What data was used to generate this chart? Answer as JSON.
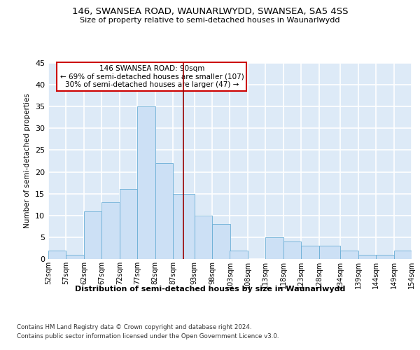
{
  "title1": "146, SWANSEA ROAD, WAUNARLWYDD, SWANSEA, SA5 4SS",
  "title2": "Size of property relative to semi-detached houses in Waunarlwydd",
  "xlabel": "Distribution of semi-detached houses by size in Waunarlwydd",
  "ylabel": "Number of semi-detached properties",
  "bin_labels": [
    "52sqm",
    "57sqm",
    "62sqm",
    "67sqm",
    "72sqm",
    "77sqm",
    "82sqm",
    "87sqm",
    "93sqm",
    "98sqm",
    "103sqm",
    "108sqm",
    "113sqm",
    "118sqm",
    "123sqm",
    "128sqm",
    "134sqm",
    "139sqm",
    "144sqm",
    "149sqm",
    "154sqm"
  ],
  "bar_heights": [
    2,
    1,
    11,
    13,
    16,
    35,
    22,
    15,
    10,
    8,
    2,
    0,
    5,
    4,
    3,
    3,
    2,
    1,
    1,
    2
  ],
  "bar_color": "#cce0f5",
  "bar_edge_color": "#6aaed6",
  "bg_color": "#ddeaf7",
  "grid_color": "#ffffff",
  "vline_color": "#990000",
  "annotation_text": "146 SWANSEA ROAD: 90sqm\n← 69% of semi-detached houses are smaller (107)\n30% of semi-detached houses are larger (47) →",
  "annotation_box_color": "#ffffff",
  "annotation_box_edge": "#cc0000",
  "footer1": "Contains HM Land Registry data © Crown copyright and database right 2024.",
  "footer2": "Contains public sector information licensed under the Open Government Licence v3.0.",
  "ylim": [
    0,
    45
  ],
  "yticks": [
    0,
    5,
    10,
    15,
    20,
    25,
    30,
    35,
    40,
    45
  ],
  "bin_edges": [
    52,
    57,
    62,
    67,
    72,
    77,
    82,
    87,
    93,
    98,
    103,
    108,
    113,
    118,
    123,
    128,
    134,
    139,
    144,
    149,
    154
  ],
  "vline_x": 90
}
